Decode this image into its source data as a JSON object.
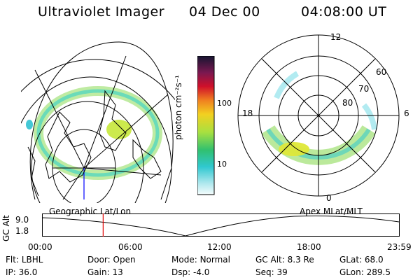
{
  "header": {
    "instrument": "Ultraviolet Imager",
    "date": "04 Dec 00",
    "time": "04:08:00 UT"
  },
  "colorbar": {
    "unit_label": "photon cm⁻²s⁻¹",
    "ticks": [
      "100",
      "10"
    ]
  },
  "polar": {
    "mlt_labels": {
      "top": "12",
      "left": "18",
      "right": "6",
      "bottom": "0"
    },
    "lat_labels": [
      "60",
      "70",
      "80"
    ]
  },
  "timeline": {
    "left_caption": "Geographic Lat/Lon",
    "right_caption": "Apex  MLat/MLT",
    "axis_label": "GC Alt",
    "y_ticks": [
      "9.0",
      "1.8"
    ],
    "x_ticks": [
      "00:00",
      "06:00",
      "12:00",
      "18:00",
      "23:59"
    ],
    "marker_time_fraction": 0.17
  },
  "info": {
    "row1": [
      {
        "label": "Flt:",
        "value": "LBHL"
      },
      {
        "label": "Door:",
        "value": "Open"
      },
      {
        "label": "Mode:",
        "value": "Normal"
      },
      {
        "label": "GC Alt:",
        "value": "8.3 Re"
      },
      {
        "label": "GLat:",
        "value": "68.0"
      }
    ],
    "row2": [
      {
        "label": "IP:",
        "value": "36.0"
      },
      {
        "label": "Gain:",
        "value": "13"
      },
      {
        "label": "Dsp:",
        "value": "-4.0"
      },
      {
        "label": "Seq:",
        "value": "39"
      },
      {
        "label": "GLon:",
        "value": "289.5"
      }
    ]
  }
}
